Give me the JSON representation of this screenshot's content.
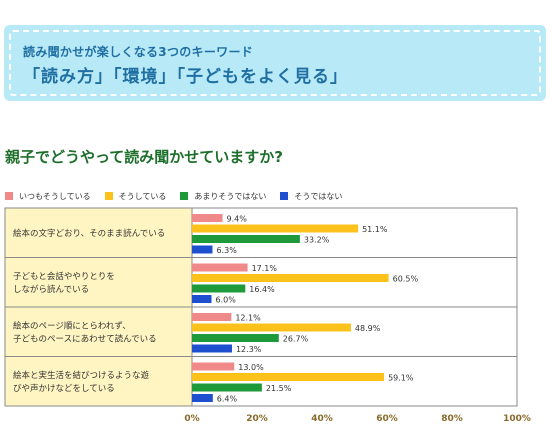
{
  "banner": {
    "subtitle": "読み聞かせが楽しくなる3つのキーワード",
    "title": "「読み方」「環境」「子どもをよく見る」"
  },
  "question": "親子でどうやって読み聞かせていますか?",
  "colors": {
    "pink": "#f08a8a",
    "yellow": "#fcc21b",
    "green": "#1f9a3a",
    "blue": "#1d4fcf",
    "label_bg": "#fff5c2",
    "plot_border": "#8a8a8a"
  },
  "chart_data": {
    "type": "bar",
    "orientation": "horizontal",
    "unit": "%",
    "xlim": [
      0,
      100
    ],
    "x_ticks": [
      "0%",
      "20%",
      "40%",
      "60%",
      "80%",
      "100%"
    ],
    "legend_position": "top",
    "categories": [
      [
        "絵本の文字どおり、そのまま読んでいる"
      ],
      [
        "子どもと会話ややりとりを",
        "しながら読んでいる"
      ],
      [
        "絵本のページ順にとらわれず、",
        "子どものペースにあわせて読んでいる"
      ],
      [
        "絵本と実生活を結びつけるような遊",
        "びや声かけなどをしている"
      ]
    ],
    "series": [
      {
        "name": "いつもそうしている",
        "color": "#f08a8a",
        "values": [
          9.4,
          17.1,
          12.1,
          13.0
        ],
        "labels": [
          "9.4%",
          "17.1%",
          "12.1%",
          "13.0%"
        ]
      },
      {
        "name": "そうしている",
        "color": "#fcc21b",
        "values": [
          51.1,
          60.5,
          48.9,
          59.1
        ],
        "labels": [
          "51.1%",
          "60.5%",
          "48.9%",
          "59.1%"
        ]
      },
      {
        "name": "あまりそうではない",
        "color": "#1f9a3a",
        "values": [
          33.2,
          16.4,
          26.7,
          21.5
        ],
        "labels": [
          "33.2%",
          "16.4%",
          "26.7%",
          "21.5%"
        ]
      },
      {
        "name": "そうではない",
        "color": "#1d4fcf",
        "values": [
          6.3,
          6.0,
          12.3,
          6.4
        ],
        "labels": [
          "6.3%",
          "6.0%",
          "12.3%",
          "6.4%"
        ]
      }
    ]
  }
}
